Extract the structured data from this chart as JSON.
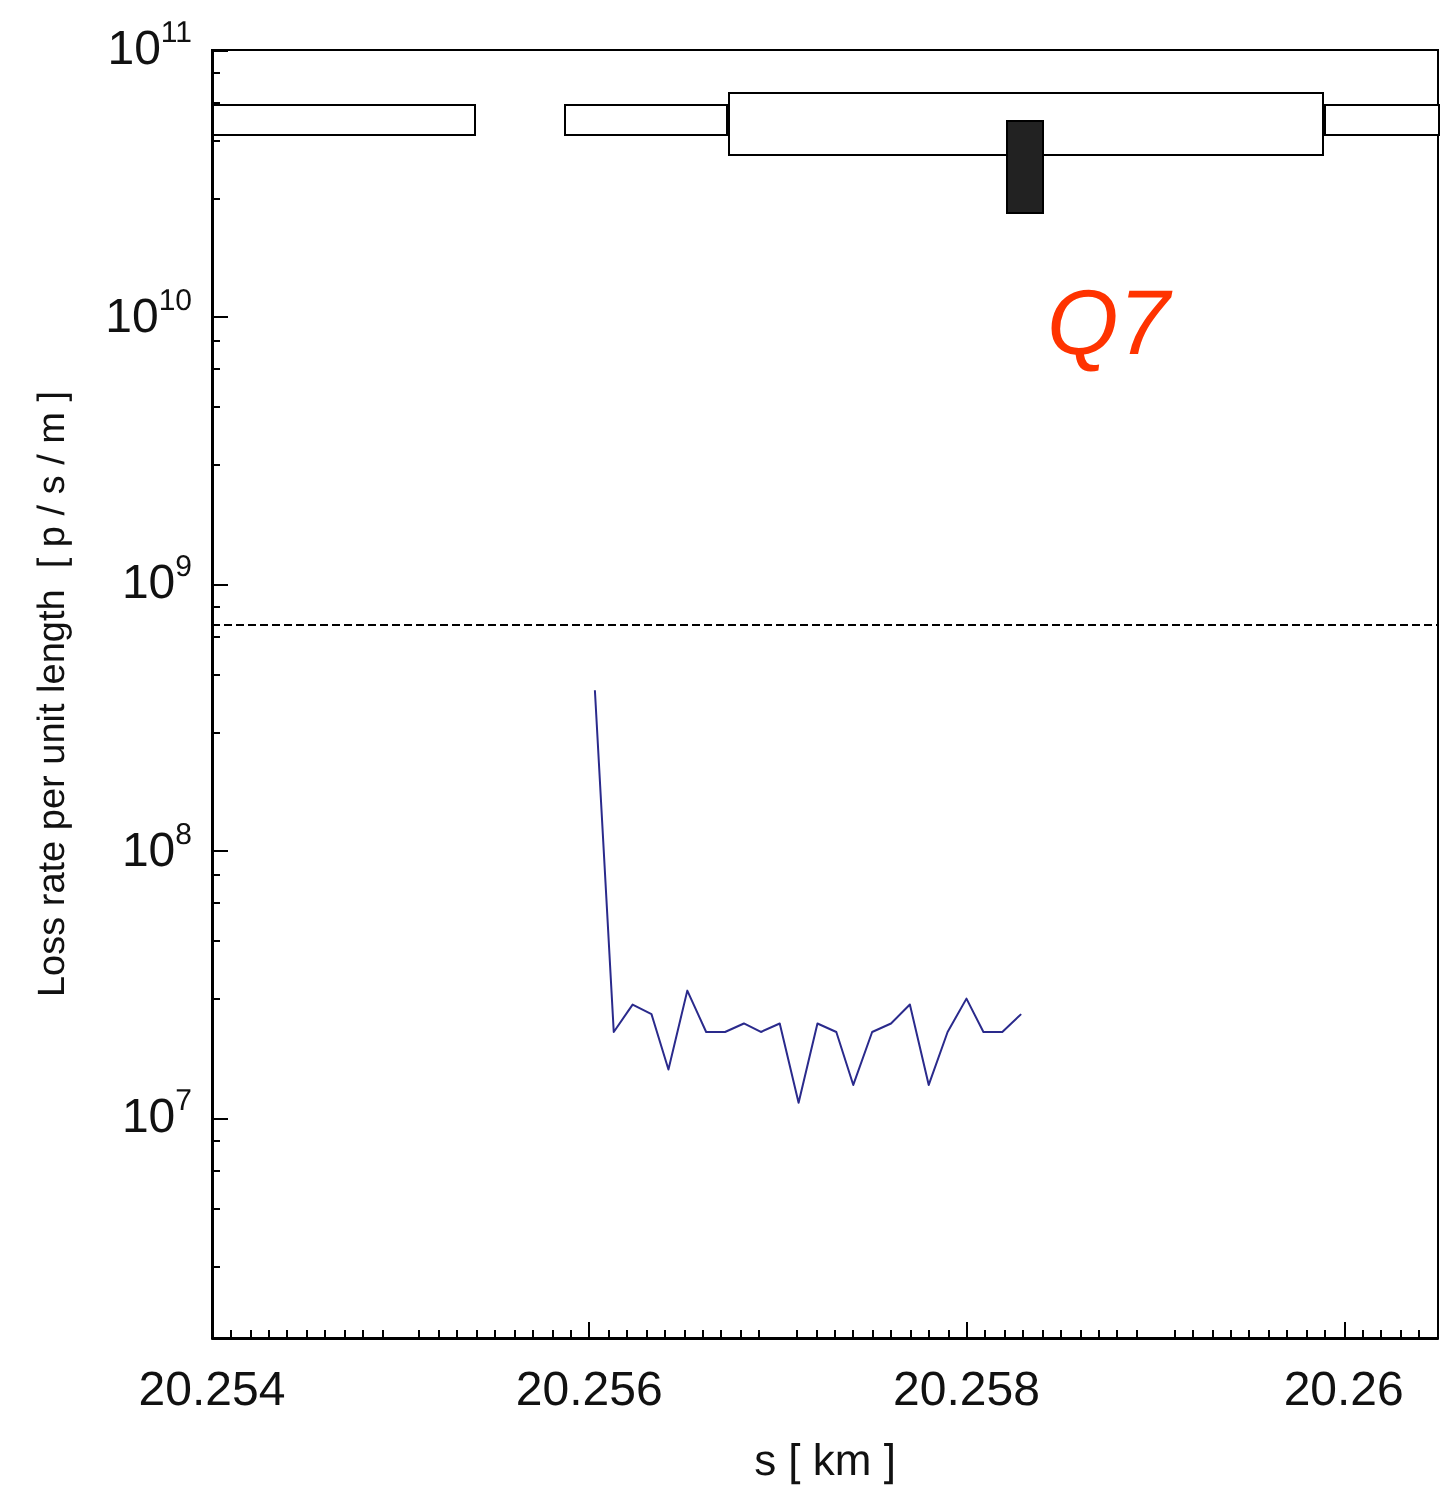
{
  "chart_data": {
    "type": "line",
    "xlabel": "s [ km ]",
    "ylabel": "Loss rate per unit length  [ p / s / m ]",
    "annotations": [
      "Q7"
    ],
    "log": "y",
    "xlim": [
      20.254,
      20.2605
    ],
    "xticks": [
      20.254,
      20.256,
      20.258,
      20.26
    ],
    "ylim": [
      1500000,
      100000000000
    ],
    "yticks": [
      {
        "value": 10000000,
        "label": "10$^{7}$"
      },
      {
        "value": 100000000,
        "label": "10$^{8}$"
      },
      {
        "value": 1000000000,
        "label": "10$^{9}$"
      },
      {
        "value": 10000000000,
        "label": "10$^{10}$"
      },
      {
        "value": 100000000000,
        "label": "10$^{11}$"
      }
    ],
    "ref_lines": [
      {
        "axis": "y",
        "value": 700000000,
        "label": null,
        "color": "#000000",
        "line_style": "dashed"
      }
    ],
    "series": [
      {
        "color": "#2a2a8c",
        "x": [
          20.25603,
          20.25613,
          20.25623,
          20.25633,
          20.25642,
          20.25652,
          20.25662,
          20.25672,
          20.25682,
          20.25691,
          20.25701,
          20.25711,
          20.25721,
          20.25731,
          20.2574,
          20.2575,
          20.2576,
          20.2577,
          20.2578,
          20.2579,
          20.258,
          20.25809,
          20.25819,
          20.25829
        ],
        "values": [
          400000000,
          21000000,
          26600000,
          24500000,
          15200000,
          30000000,
          21000000,
          21000000,
          22600000,
          21000000,
          22600000,
          11400000,
          22600000,
          21000000,
          13300000,
          21000000,
          22600000,
          26600000,
          13300000,
          21000000,
          28000000,
          21000000,
          21000000,
          24500000
        ]
      }
    ],
    "grid": false
  }
}
